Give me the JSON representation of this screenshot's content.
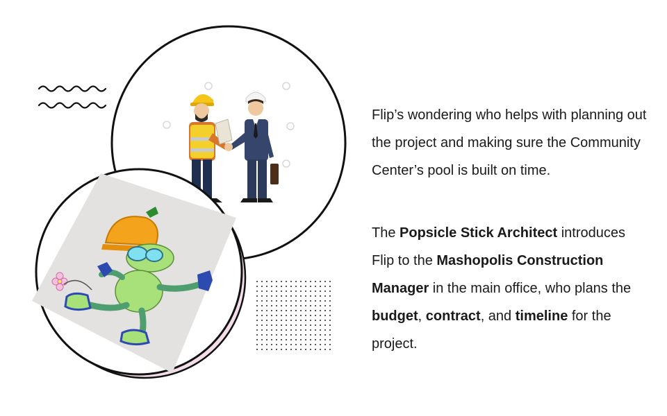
{
  "paragraph1": {
    "text": "Flip’s wondering who helps with planning out the project and making sure the Community Center’s pool is built on time."
  },
  "paragraph2": {
    "part1": "The ",
    "bold1": "Popsicle Stick Architect",
    "part2": " introduces Flip to the ",
    "bold2": "Mashopolis Construction Manager",
    "part3": " in the main office, who plans the ",
    "bold3": "budget",
    "part4": ", ",
    "bold4": "contract",
    "part5": ", and ",
    "bold5": "timeline",
    "part6": " for the project."
  },
  "icons": [
    "wave-lines-icon",
    "dot-grid-icon",
    "handshake-illustration",
    "flip-character-illustration",
    "flower-icon"
  ],
  "colors": {
    "text": "#1a1a1a",
    "circle_outline": "#111111",
    "pink_shadow": "#f3dde8",
    "helmet_orange": "#f4a31c",
    "worker_vest": "#f5a623",
    "character_green": "#a8e07a",
    "photo_backdrop": "#e4e2e0"
  }
}
